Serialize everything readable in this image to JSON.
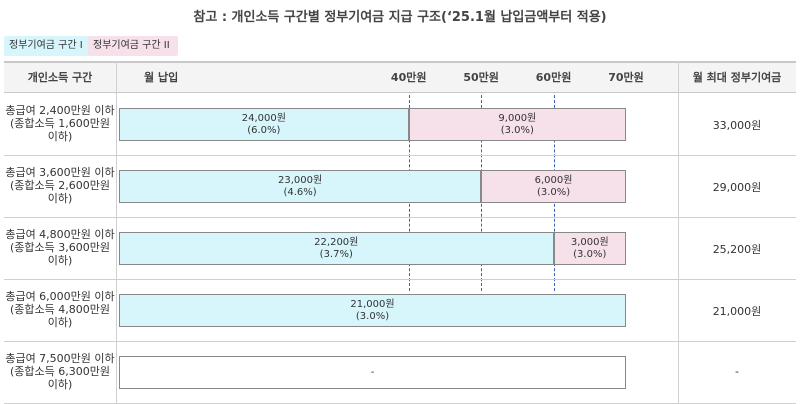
{
  "title": "참고 : 개인소득 구간별 정부기여금 지급 구조(‘25.1월 납입금액부터 적용)",
  "legend": {
    "zone1": "정부기여금 구간 I",
    "zone2": "정부기여금 구간 II"
  },
  "colors": {
    "zone1": "#d7f6fb",
    "zone2": "#f6e1ea",
    "divider": "#3b5fb5"
  },
  "header": {
    "income_bracket": "개인소득 구간",
    "monthly_payment": "월 납입",
    "ticks": [
      "40만원",
      "50만원",
      "60만원",
      "70만원"
    ],
    "max_contribution": "월 최대 정부기여금"
  },
  "chart_data": {
    "type": "bar",
    "orientation": "horizontal-stacked",
    "x_unit": "만원",
    "xlim": [
      0,
      70
    ],
    "x_ticks": [
      40,
      50,
      60,
      70
    ],
    "rows": [
      {
        "label_lines": [
          "총급여 2,400만원 이하",
          "(종합소득 1,600만원",
          "이하)"
        ],
        "zone1_end": 40,
        "zone2_end": 70,
        "zone1_text": [
          "24,000원",
          "(6.0%)"
        ],
        "zone2_text": [
          "9,000원",
          "(3.0%)"
        ],
        "max": "33,000원"
      },
      {
        "label_lines": [
          "총급여 3,600만원 이하",
          "(종합소득 2,600만원",
          "이하)"
        ],
        "zone1_end": 50,
        "zone2_end": 70,
        "zone1_text": [
          "23,000원",
          "(4.6%)"
        ],
        "zone2_text": [
          "6,000원",
          "(3.0%)"
        ],
        "max": "29,000원"
      },
      {
        "label_lines": [
          "총급여 4,800만원 이하",
          "(종합소득 3,600만원",
          "이하)"
        ],
        "zone1_end": 60,
        "zone2_end": 70,
        "zone1_text": [
          "22,200원",
          "(3.7%)"
        ],
        "zone2_text": [
          "3,000원",
          "(3.0%)"
        ],
        "max": "25,200원"
      },
      {
        "label_lines": [
          "총급여 6,000만원 이하",
          "(종합소득 4,800만원",
          "이하)"
        ],
        "zone1_end": 70,
        "zone2_end": 70,
        "zone1_text": [
          "21,000원",
          "(3.0%)"
        ],
        "zone2_text": [],
        "max": "21,000원"
      },
      {
        "label_lines": [
          "총급여 7,500만원 이하",
          "(종합소득 6,300만원",
          "이하)"
        ],
        "zone1_end": 0,
        "zone2_end": 0,
        "zone1_text": [],
        "zone2_text": [],
        "empty_text": "-",
        "max": "-"
      }
    ]
  }
}
